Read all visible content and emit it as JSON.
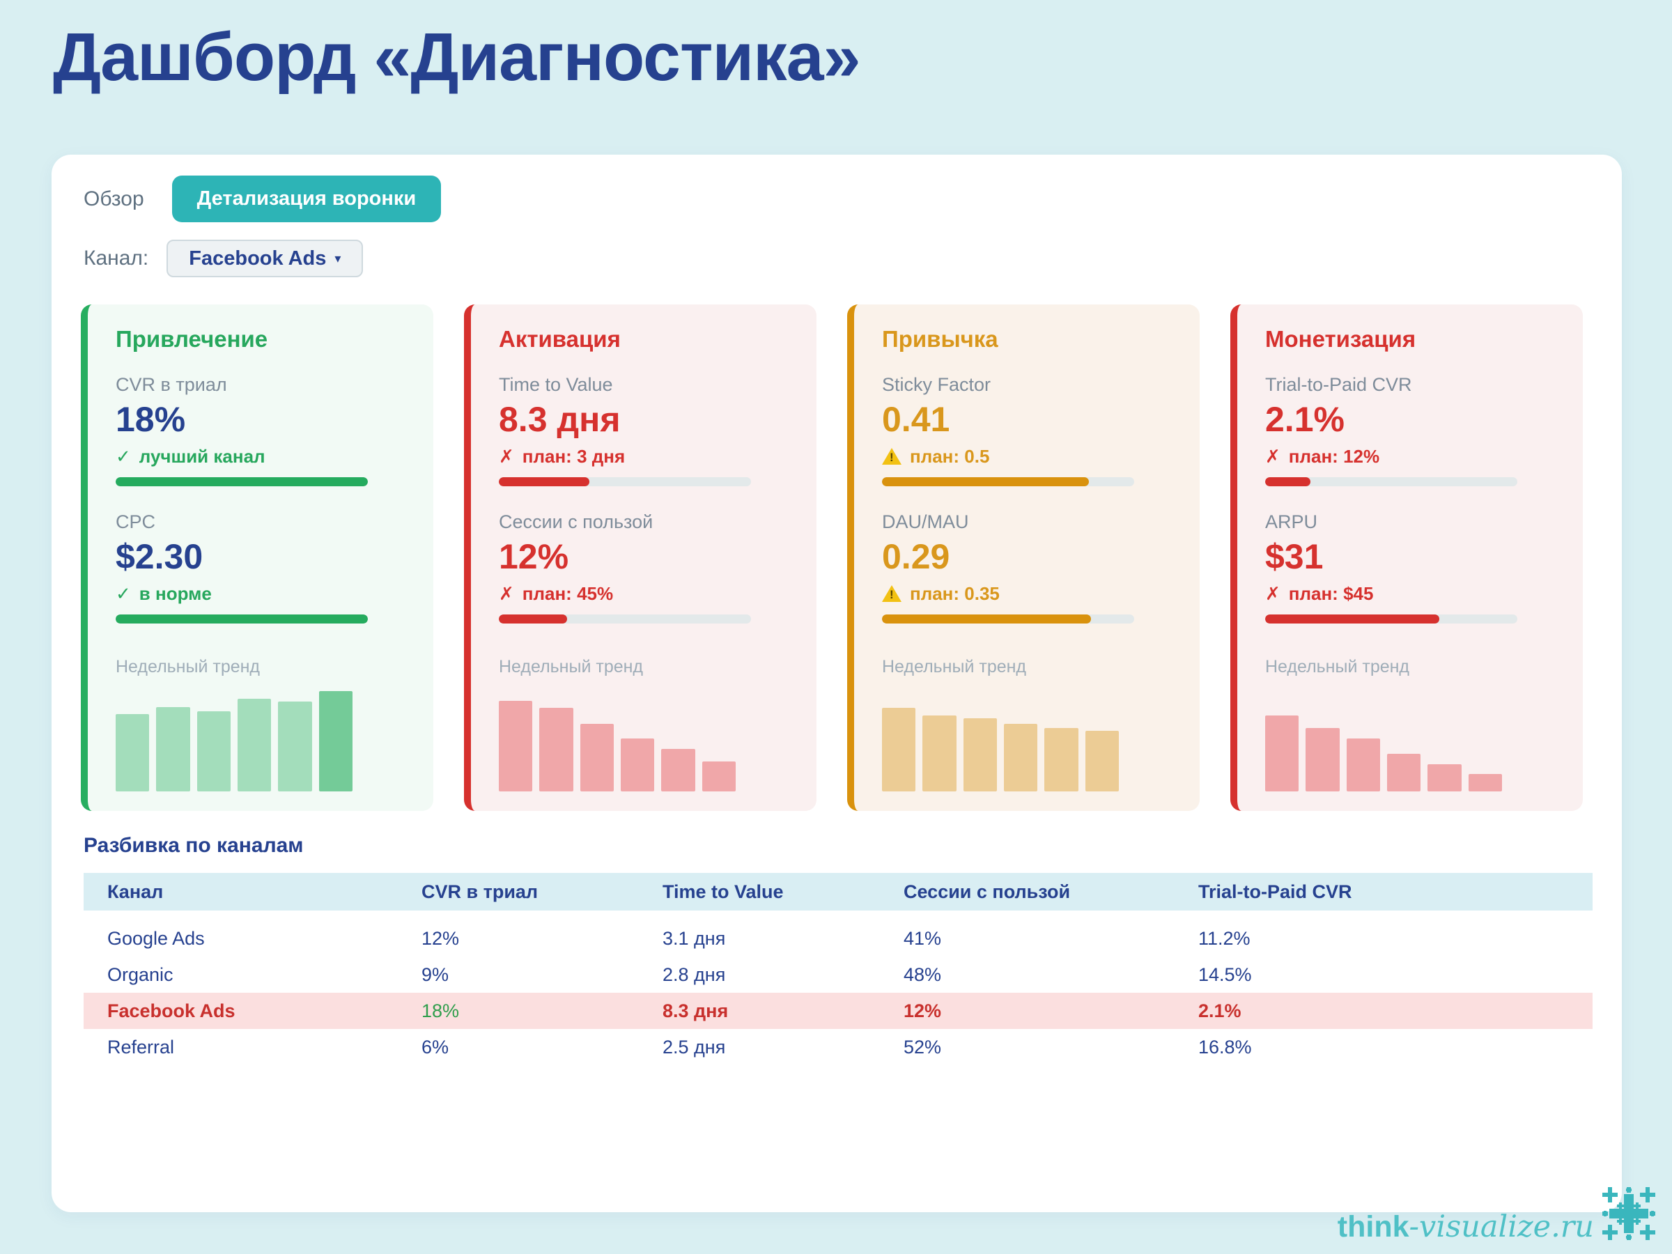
{
  "page": {
    "title": "Дашборд «Диагностика»"
  },
  "tabs": {
    "overview": "Обзор",
    "funnel_detail": "Детализация воронки"
  },
  "channel": {
    "label": "Канал:",
    "selected": "Facebook Ads",
    "caret": "▾"
  },
  "cards": [
    {
      "id": "acquisition",
      "title": "Привлечение",
      "colors": {
        "accent": "#27ae60",
        "bg": "#f2faf5",
        "title": "#27a75d",
        "value": "#26418f",
        "status": "#27a75d",
        "bar": "#25ab5e",
        "trend": "#a3ddbb",
        "trend_last": "#74cb98"
      },
      "metrics": [
        {
          "label": "CVR в триал",
          "value": "18%",
          "icon": "✓",
          "status": "лучший канал",
          "progress": 100
        },
        {
          "label": "CPC",
          "value": "$2.30",
          "icon": "✓",
          "status": "в норме",
          "progress": 100
        }
      ],
      "trend_label": "Недельный тренд",
      "trend": [
        74,
        81,
        77,
        89,
        86,
        96
      ]
    },
    {
      "id": "activation",
      "title": "Активация",
      "colors": {
        "accent": "#d6312e",
        "bg": "#faf0f0",
        "title": "#d6312e",
        "value": "#d6312e",
        "status": "#d6312e",
        "bar": "#d6312e",
        "trend": "#f0a7a9",
        "trend_last": "#f0a7a9"
      },
      "metrics": [
        {
          "label": "Time to Value",
          "value": "8.3 дня",
          "icon": "✗",
          "status": "план: 3 дня",
          "progress": 36
        },
        {
          "label": "Сессии с пользой",
          "value": "12%",
          "icon": "✗",
          "status": "план: 45%",
          "progress": 27
        }
      ],
      "trend_label": "Недельный тренд",
      "trend": [
        87,
        80,
        65,
        51,
        41,
        29
      ]
    },
    {
      "id": "habit",
      "title": "Привычка",
      "colors": {
        "accent": "#d9920d",
        "bg": "#faf2ea",
        "title": "#d9971c",
        "value": "#d9971c",
        "status": "#d9971c",
        "bar": "#d9920d",
        "trend": "#eccc95",
        "trend_last": "#eccc95"
      },
      "metrics": [
        {
          "label": "Sticky Factor",
          "value": "0.41",
          "icon": "⚠",
          "status": "план: 0.5",
          "progress": 82
        },
        {
          "label": "DAU/MAU",
          "value": "0.29",
          "icon": "⚠",
          "status": "план: 0.35",
          "progress": 83
        }
      ],
      "trend_label": "Недельный тренд",
      "trend": [
        80,
        73,
        70,
        65,
        61,
        58
      ]
    },
    {
      "id": "monetization",
      "title": "Монетизация",
      "colors": {
        "accent": "#d6312e",
        "bg": "#faf0f0",
        "title": "#d6312e",
        "value": "#d6312e",
        "status": "#d6312e",
        "bar": "#d6312e",
        "trend": "#f0a7a9",
        "trend_last": "#f0a7a9"
      },
      "metrics": [
        {
          "label": "Trial-to-Paid CVR",
          "value": "2.1%",
          "icon": "✗",
          "status": "план: 12%",
          "progress": 18
        },
        {
          "label": "ARPU",
          "value": "$31",
          "icon": "✗",
          "status": "план: $45",
          "progress": 69
        }
      ],
      "trend_label": "Недельный тренд",
      "trend": [
        73,
        61,
        51,
        36,
        26,
        17
      ]
    }
  ],
  "table": {
    "title": "Разбивка по каналам",
    "headers": [
      "Канал",
      "CVR в триал",
      "Time to Value",
      "Сессии с пользой",
      "Trial-to-Paid CVR"
    ],
    "highlight_bg": "#fbdfdf",
    "rows": [
      {
        "cells": [
          "Google Ads",
          "12%",
          "3.1 дня",
          "41%",
          "11.2%"
        ],
        "highlight": false
      },
      {
        "cells": [
          "Organic",
          "9%",
          "2.8 дня",
          "48%",
          "14.5%"
        ],
        "highlight": false
      },
      {
        "cells": [
          "Facebook Ads",
          "18%",
          "8.3 дня",
          "12%",
          "2.1%"
        ],
        "highlight": true,
        "cell_colors": [
          "#c8302d",
          "#2f9e4c",
          "#c8302d",
          "#c8302d",
          "#c8302d"
        ],
        "cell_bold": [
          true,
          false,
          true,
          true,
          true
        ]
      },
      {
        "cells": [
          "Referral",
          "6%",
          "2.5 дня",
          "52%",
          "16.8%"
        ],
        "highlight": false
      }
    ]
  },
  "footer": {
    "brand_bold": "think",
    "brand_rest": "-visualize.ru",
    "brand_color": "#4fc0c6"
  }
}
